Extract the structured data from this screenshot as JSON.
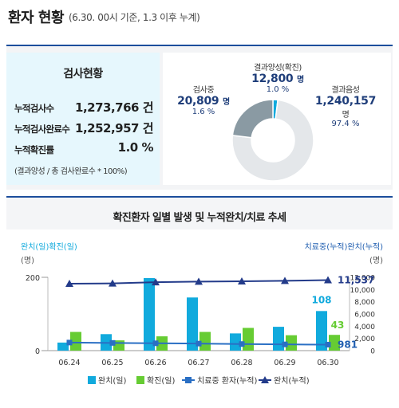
{
  "header": {
    "title": "환자 현황",
    "subtitle": "(6.30. 00시 기준, 1.3 이후 누계)"
  },
  "summary": {
    "title": "검사현황",
    "rows": [
      {
        "label": "누적검사수",
        "value": "1,273,766 건"
      },
      {
        "label": "누적검사완료수",
        "value": "1,252,957 건"
      },
      {
        "label": "누적확진률",
        "value": "1.0 %"
      }
    ],
    "note": "(결과양성 / 총 검사완료수 * 100%)"
  },
  "pie": {
    "testing": {
      "label": "검사중",
      "value": "20,809",
      "unit": "명",
      "pct": "1.6 %"
    },
    "positive": {
      "label": "결과양성(확진)",
      "value": "12,800",
      "unit": "명",
      "pct": "1.0 %"
    },
    "negative": {
      "label": "결과음성",
      "value": "1,240,157",
      "unit": "명",
      "pct": "97.4 %"
    }
  },
  "colors": {
    "brand_blue": "#1c4e9c",
    "bar_released": "#11aadd",
    "bar_confirmed": "#66cc33",
    "line_isolated": "#2a6fc4",
    "line_released_cum": "#233b8a",
    "pie_testing": "#8a9aa3",
    "pie_positive": "#11aadd",
    "pie_negative": "#e4e7ea"
  },
  "chart_data": [
    {
      "type": "pie",
      "slices": [
        {
          "label": "검사중",
          "value": 20809,
          "pct": 1.6
        },
        {
          "label": "결과양성(확진)",
          "value": 12800,
          "pct": 1.0
        },
        {
          "label": "결과음성",
          "value": 1240157,
          "pct": 97.4
        }
      ]
    },
    {
      "type": "bar",
      "title": "확진환자 일별 발생 및 누적완치/치료 추세",
      "left_axis_label": "완치(일)확진(일)",
      "left_axis_unit": "(명)",
      "right_axis_label": "치료중(누적)완치(누적)",
      "right_axis_unit": "(명)",
      "categories": [
        "06.24",
        "06.25",
        "06.26",
        "06.27",
        "06.28",
        "06.29",
        "06.30"
      ],
      "ylim_left": [
        0,
        200
      ],
      "left_ticks": [
        "0",
        "200"
      ],
      "ylim_right": [
        0,
        12000
      ],
      "right_ticks": [
        "0",
        "2,000",
        "4,000",
        "6,000",
        "8,000",
        "10,000",
        "12,000"
      ],
      "series": [
        {
          "name": "완치(일)",
          "type": "bar",
          "axis": "left",
          "values": [
            22,
            45,
            198,
            145,
            47,
            65,
            108
          ]
        },
        {
          "name": "확진(일)",
          "type": "bar",
          "axis": "left",
          "values": [
            51,
            28,
            39,
            51,
            62,
            42,
            43
          ]
        },
        {
          "name": "치료중 환자(누적)",
          "type": "line",
          "axis": "right",
          "values": [
            1320,
            1260,
            1200,
            1150,
            1080,
            1020,
            981
          ]
        },
        {
          "name": "완치(누적)",
          "type": "line",
          "axis": "right",
          "values": [
            10950,
            11000,
            11200,
            11300,
            11350,
            11430,
            11537
          ]
        }
      ],
      "data_labels": {
        "released_last": "108",
        "confirmed_last": "43",
        "isolated_last": "981",
        "released_cum_last": "11,537"
      }
    }
  ]
}
